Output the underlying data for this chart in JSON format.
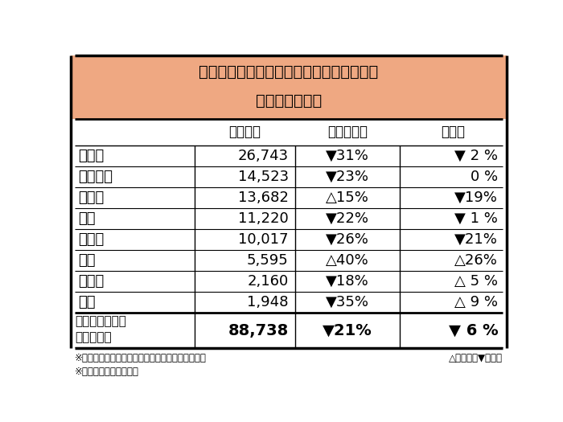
{
  "title_line1": "主な日系ブランドの２月の自動車販売台数",
  "title_line2": "（出荷ベース）",
  "title_bg_color": "#EFA882",
  "header_row": [
    "",
    "販売台数",
    "前年同月比",
    "前月比"
  ],
  "rows": [
    [
      "トヨタ",
      "26,743",
      "▼31%",
      "▼ 2 %"
    ],
    [
      "ダイハツ",
      "14,523",
      "▼23%",
      "0 %"
    ],
    [
      "ホンダ",
      "13,682",
      "△15%",
      "▼19%"
    ],
    [
      "三菱",
      "11,220",
      "▼22%",
      "▼ 1 %"
    ],
    [
      "スズキ",
      "10,017",
      "▼26%",
      "▼21%"
    ],
    [
      "日産",
      "5,595",
      "△40%",
      "△26%"
    ],
    [
      "いず",
      "2,160",
      "▼18%",
      "△ 5 %"
    ],
    [
      "日野",
      "1,948",
      "▼35%",
      "△ 9 %"
    ]
  ],
  "total_label1": "日系以外を含む",
  "total_label2": "総販売台数",
  "total_sales": "88,738",
  "total_yoy": "▼21%",
  "total_mom": "▼ 6 %",
  "footnote1": "※自動車工業会データより。日産はダットサン含む",
  "footnote2": "※小数点以下は切り上げ",
  "footnote3": "△は増加、▼は減少",
  "bg_color": "#FFFFFF"
}
